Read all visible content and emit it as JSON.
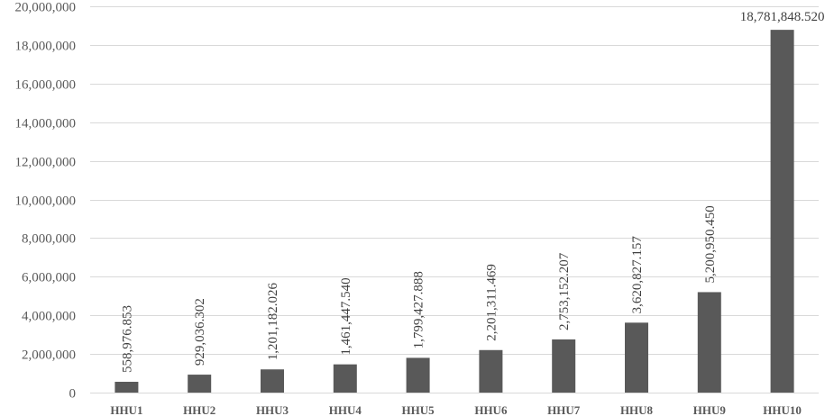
{
  "chart_data": {
    "type": "bar",
    "categories": [
      "HHU1",
      "HHU2",
      "HHU3",
      "HHU4",
      "HHU5",
      "HHU6",
      "HHU7",
      "HHU8",
      "HHU9",
      "HHU10"
    ],
    "values": [
      558976.853,
      929036.302,
      1201182.026,
      1461447.54,
      1799427.888,
      2201311.469,
      2753152.207,
      3620827.157,
      5200950.45,
      18781848.52
    ],
    "data_labels": [
      "558,976.853",
      "929,036.302",
      "1,201,182.026",
      "1,461,447.540",
      "1,799,427.888",
      "2,201,311.469",
      "2,753,152.207",
      "3,620,827.157",
      "5,200,950.450",
      "18,781,848.520"
    ],
    "y_ticks": [
      0,
      2000000,
      4000000,
      6000000,
      8000000,
      10000000,
      12000000,
      14000000,
      16000000,
      18000000,
      20000000
    ],
    "y_tick_labels": [
      "0",
      "2,000,000",
      "4,000,000",
      "6,000,000",
      "8,000,000",
      "10,000,000",
      "12,000,000",
      "14,000,000",
      "16,000,000",
      "18,000,000",
      "20,000,000"
    ],
    "ylim": [
      0,
      20000000
    ],
    "grid": true,
    "legend": "none",
    "bar_color": "#595959",
    "title": "",
    "xlabel": "",
    "ylabel": ""
  }
}
